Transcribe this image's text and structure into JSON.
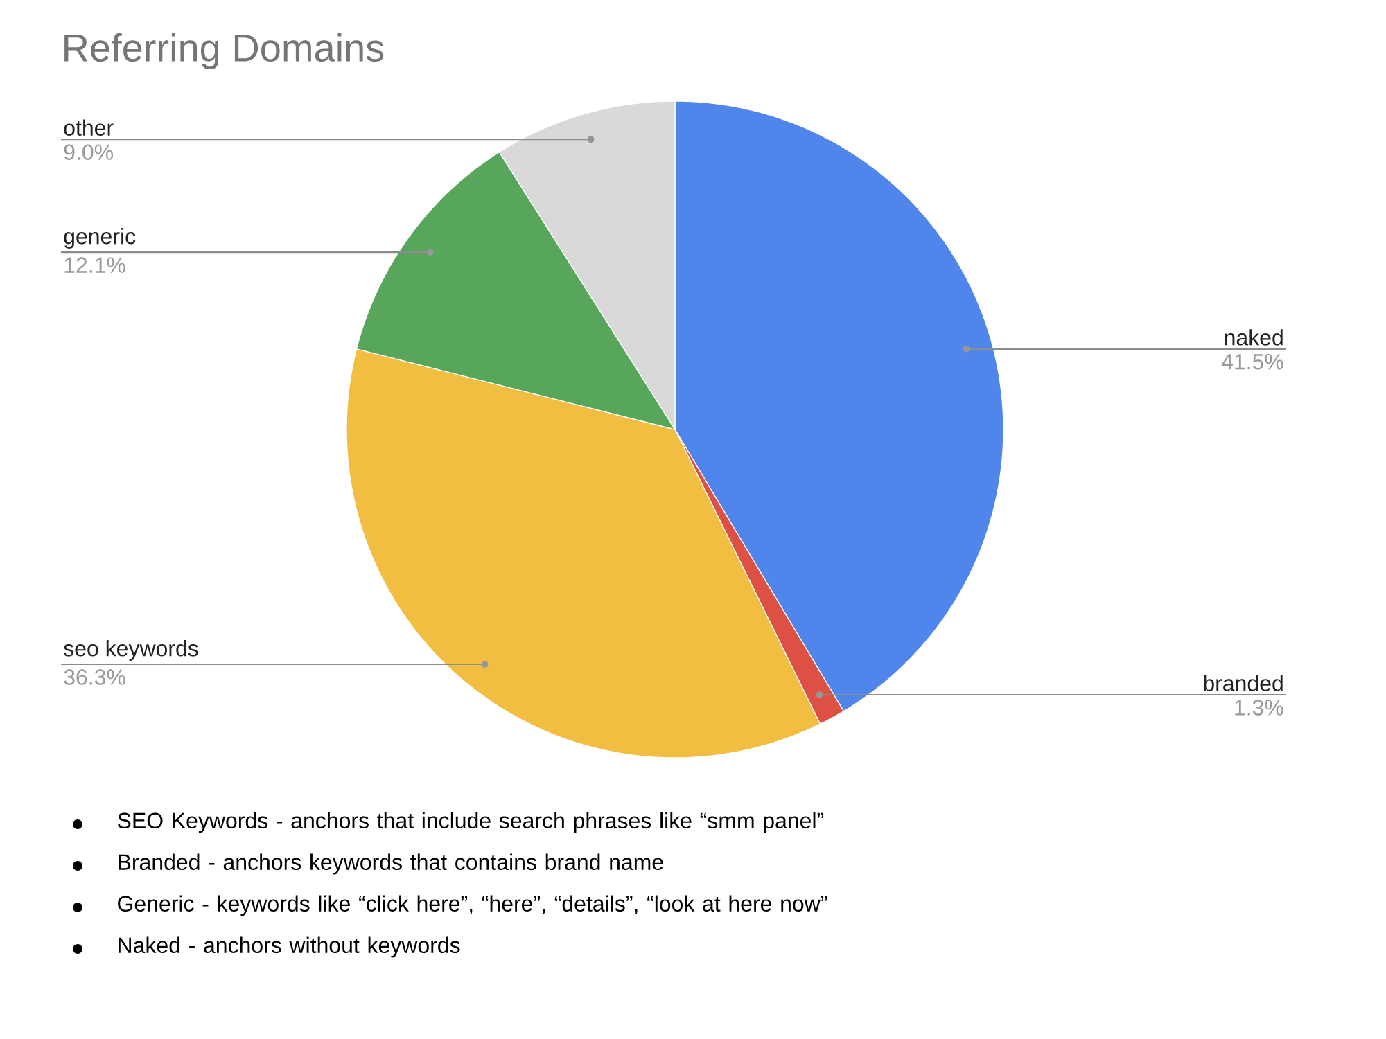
{
  "chart_data": {
    "type": "pie",
    "title": "Referring Domains",
    "categories": [
      "naked",
      "branded",
      "seo keywords",
      "generic",
      "other"
    ],
    "values": [
      41.5,
      1.3,
      36.3,
      12.1,
      9.0
    ],
    "colors": [
      "#5086ec",
      "#dd5144",
      "#f1be42",
      "#58a55c",
      "#d9d9d9"
    ],
    "value_labels": [
      "41.5%",
      "1.3%",
      "36.3%",
      "12.1%",
      "9.0%"
    ],
    "annotations": [
      "SEO Keywords - anchors that include search phrases like “smm panel”",
      "Branded - anchors keywords that contains brand name",
      "Generic - keywords like “click here”, “here”, “details”, “look at here now”",
      "Naked -  anchors without keywords"
    ]
  }
}
